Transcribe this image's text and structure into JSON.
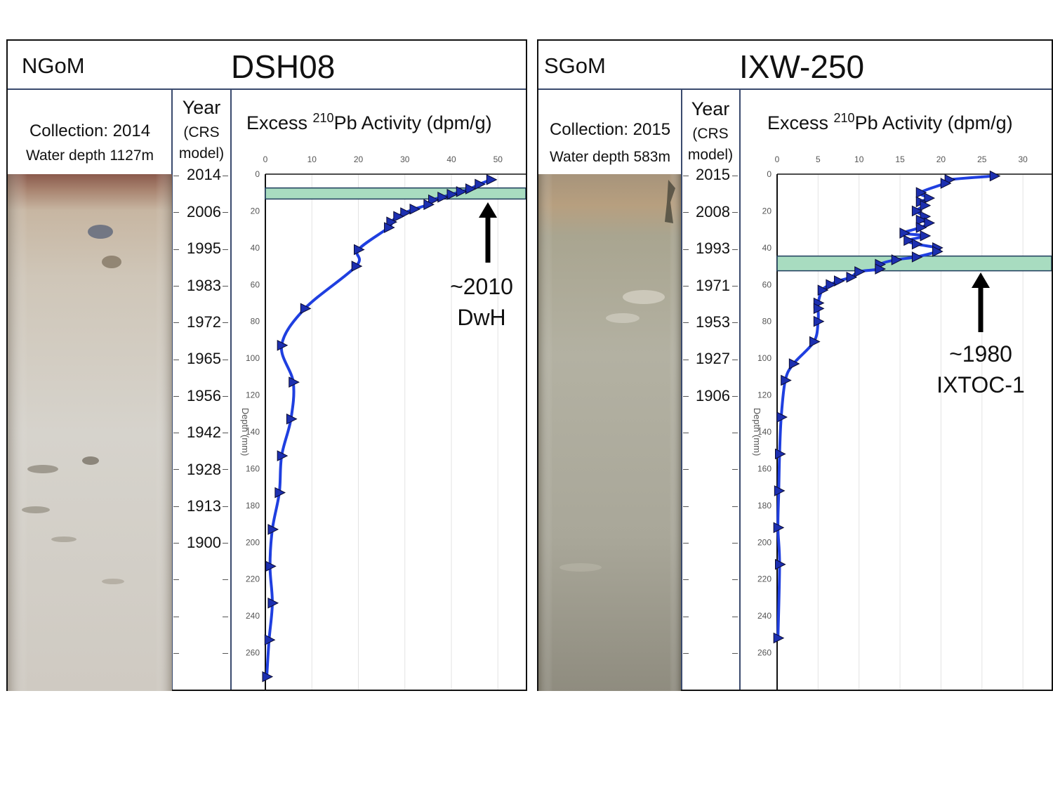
{
  "panels": [
    {
      "region": "NGoM",
      "core": "DSH08",
      "collection": "Collection: 2014",
      "water_depth": "Water depth 1127m",
      "year_header": "Year",
      "year_sub1": "(CRS",
      "year_sub2": "model)",
      "years": [
        "2014",
        "2006",
        "1995",
        "1983",
        "1972",
        "1965",
        "1956",
        "1942",
        "1928",
        "1913",
        "1900",
        "",
        "",
        ""
      ],
      "annotation_line1": "~2010",
      "annotation_line2": "DwH"
    },
    {
      "region": "SGoM",
      "core": "IXW-250",
      "collection": "Collection: 2015",
      "water_depth": "Water depth 583m",
      "year_header": "Year",
      "year_sub1": "(CRS",
      "year_sub2": "model)",
      "years": [
        "2015",
        "2008",
        "1993",
        "1971",
        "1953",
        "1927",
        "1906",
        "",
        "",
        "",
        "",
        "",
        "",
        ""
      ],
      "annotation_line1": "~1980",
      "annotation_line2": "IXTOC-1"
    }
  ],
  "chart_data": [
    {
      "type": "line",
      "title_prefix": "Excess ",
      "title_sup": "210",
      "title_suffix": "Pb Activity (dpm/g)",
      "ylabel": "Depth (mm)",
      "xlim": [
        0,
        56
      ],
      "xticks": [
        0,
        10,
        20,
        30,
        40,
        50
      ],
      "ylim": [
        0,
        280
      ],
      "yticks": [
        0,
        20,
        40,
        60,
        80,
        100,
        120,
        140,
        160,
        180,
        200,
        220,
        240,
        260
      ],
      "y_inverted": true,
      "highlight_band": [
        7.5,
        13.5
      ],
      "series_color": "#1f3fe0",
      "points": [
        {
          "x": 48.5,
          "y": 3
        },
        {
          "x": 46,
          "y": 5.5
        },
        {
          "x": 44,
          "y": 8
        },
        {
          "x": 42,
          "y": 9.5
        },
        {
          "x": 40,
          "y": 11
        },
        {
          "x": 38,
          "y": 12.5
        },
        {
          "x": 36,
          "y": 14
        },
        {
          "x": 35,
          "y": 16.5
        },
        {
          "x": 32,
          "y": 19
        },
        {
          "x": 30,
          "y": 21
        },
        {
          "x": 28.5,
          "y": 23
        },
        {
          "x": 27,
          "y": 26
        },
        {
          "x": 26.5,
          "y": 29
        },
        {
          "x": 20,
          "y": 41
        },
        {
          "x": 19.5,
          "y": 50
        },
        {
          "x": 8.5,
          "y": 73
        },
        {
          "x": 3.5,
          "y": 93
        },
        {
          "x": 6,
          "y": 113
        },
        {
          "x": 5.5,
          "y": 133
        },
        {
          "x": 3.5,
          "y": 153
        },
        {
          "x": 3,
          "y": 173
        },
        {
          "x": 1.5,
          "y": 193
        },
        {
          "x": 1,
          "y": 213
        },
        {
          "x": 1.5,
          "y": 233
        },
        {
          "x": 0.8,
          "y": 253
        },
        {
          "x": 0.3,
          "y": 273
        }
      ]
    },
    {
      "type": "line",
      "title_prefix": "Excess ",
      "title_sup": "210",
      "title_suffix": "Pb Activity (dpm/g)",
      "ylabel": "Depth (mm)",
      "xlim": [
        0,
        33.5
      ],
      "xticks": [
        0,
        5,
        10,
        15,
        20,
        25,
        30
      ],
      "ylim": [
        0,
        280
      ],
      "yticks": [
        0,
        20,
        40,
        60,
        80,
        100,
        120,
        140,
        160,
        180,
        200,
        220,
        240,
        260
      ],
      "y_inverted": true,
      "highlight_band": [
        44.5,
        52.5
      ],
      "series_color": "#1f3fe0",
      "points": [
        {
          "x": 26.5,
          "y": 1
        },
        {
          "x": 21,
          "y": 3
        },
        {
          "x": 20.5,
          "y": 5
        },
        {
          "x": 17.5,
          "y": 10
        },
        {
          "x": 18.5,
          "y": 13
        },
        {
          "x": 17.5,
          "y": 15
        },
        {
          "x": 18,
          "y": 17
        },
        {
          "x": 17,
          "y": 20
        },
        {
          "x": 18,
          "y": 23
        },
        {
          "x": 17.5,
          "y": 25
        },
        {
          "x": 18.5,
          "y": 26.5
        },
        {
          "x": 17.5,
          "y": 29
        },
        {
          "x": 15.5,
          "y": 32
        },
        {
          "x": 18,
          "y": 33.5
        },
        {
          "x": 16,
          "y": 36
        },
        {
          "x": 17,
          "y": 38
        },
        {
          "x": 19.5,
          "y": 40
        },
        {
          "x": 19.5,
          "y": 42
        },
        {
          "x": 17,
          "y": 45
        },
        {
          "x": 14.5,
          "y": 46.5
        },
        {
          "x": 12.5,
          "y": 49
        },
        {
          "x": 12.5,
          "y": 51.5
        },
        {
          "x": 10,
          "y": 53
        },
        {
          "x": 9,
          "y": 56
        },
        {
          "x": 7.5,
          "y": 58
        },
        {
          "x": 6.5,
          "y": 60
        },
        {
          "x": 5.5,
          "y": 63
        },
        {
          "x": 5,
          "y": 70
        },
        {
          "x": 5,
          "y": 73
        },
        {
          "x": 5,
          "y": 80
        },
        {
          "x": 4.5,
          "y": 91
        },
        {
          "x": 2,
          "y": 103
        },
        {
          "x": 1,
          "y": 112
        },
        {
          "x": 0.5,
          "y": 132
        },
        {
          "x": 0.3,
          "y": 152
        },
        {
          "x": 0.2,
          "y": 172
        },
        {
          "x": 0.1,
          "y": 192
        },
        {
          "x": 0.3,
          "y": 212
        },
        {
          "x": 0.1,
          "y": 252
        }
      ]
    }
  ]
}
